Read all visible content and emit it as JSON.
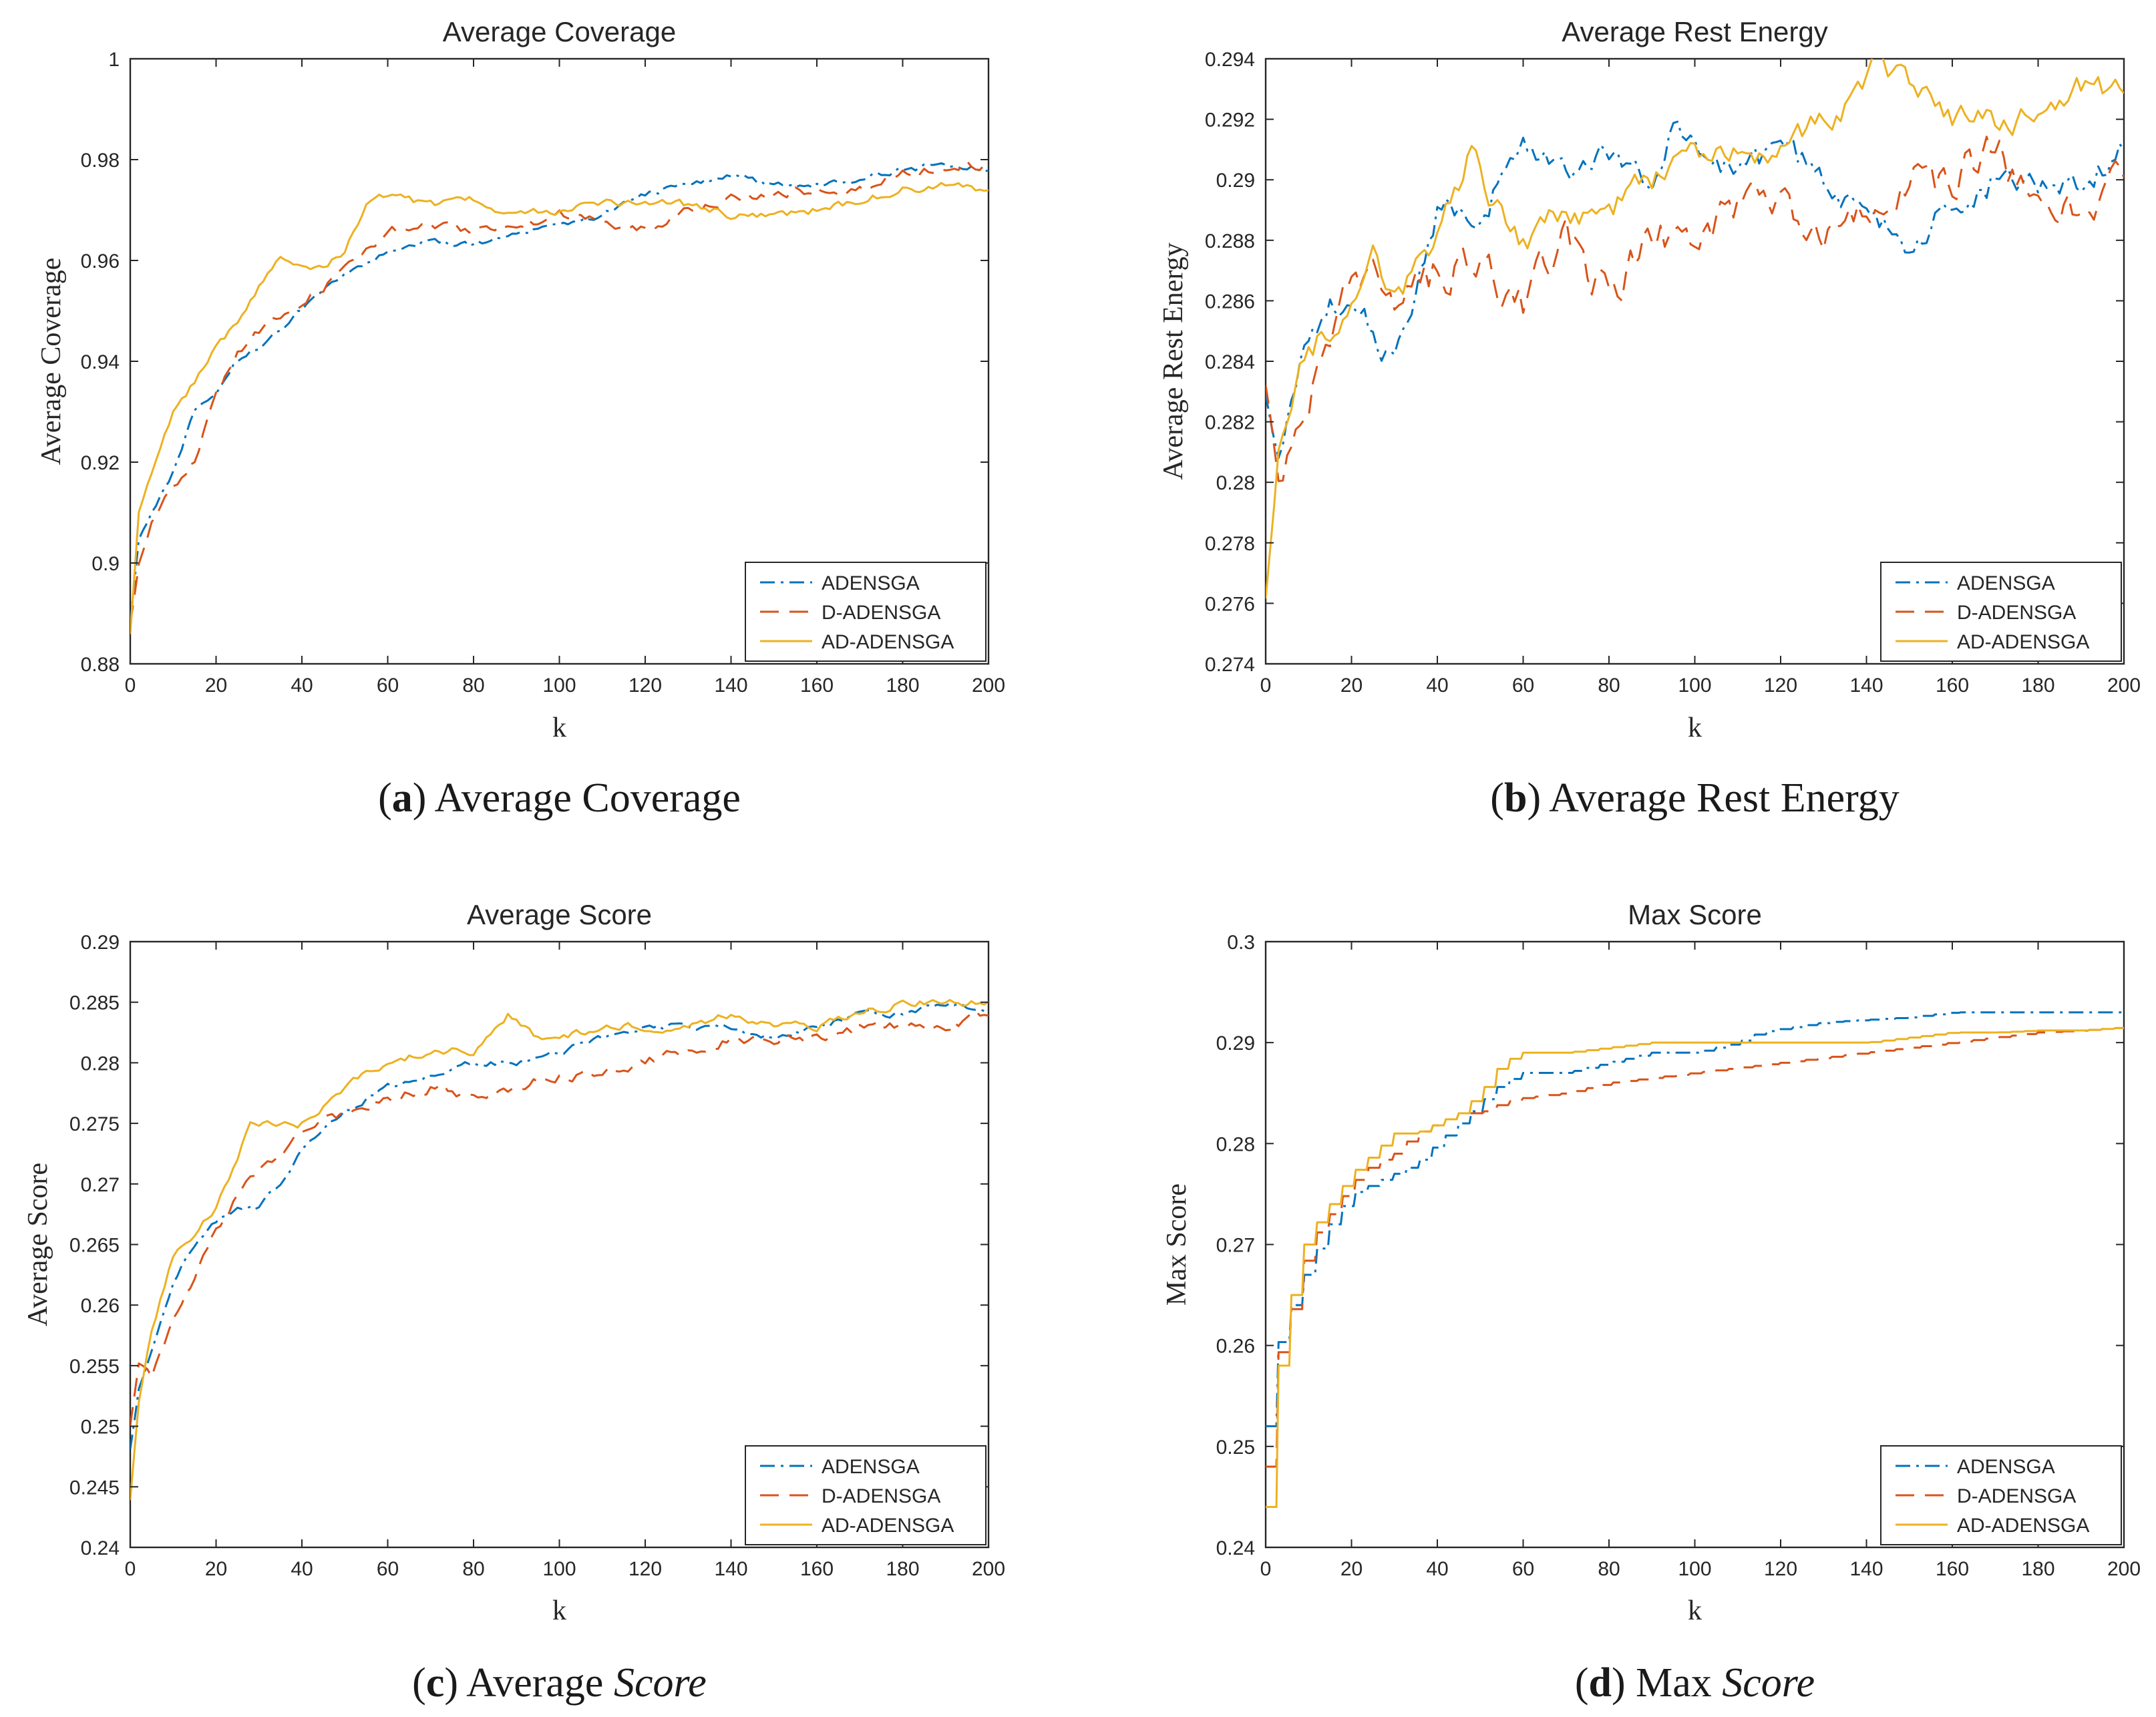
{
  "figure": {
    "series_colors": {
      "ADENSGA": "#0072BD",
      "D-ADENSGA": "#D95319",
      "AD-ADENSGA": "#EDB120"
    },
    "series_styles": {
      "ADENSGA": "dash-dot",
      "D-ADENSGA": "dashed",
      "AD-ADENSGA": "solid"
    }
  },
  "chart_data": [
    {
      "id": "a",
      "type": "line",
      "title": "Average Coverage",
      "xlabel": "k",
      "ylabel": "Average Coverage",
      "caption_label": "(a)",
      "caption_letter": "a",
      "caption_plain": "Average Coverage",
      "caption_italic": "",
      "xlim": [
        0,
        200
      ],
      "ylim": [
        0.88,
        1
      ],
      "xticks": [
        0,
        20,
        40,
        60,
        80,
        100,
        120,
        140,
        160,
        180,
        200
      ],
      "yticks": [
        0.88,
        0.9,
        0.92,
        0.94,
        0.96,
        0.98,
        1
      ],
      "ytick_labels": [
        "0.88",
        "0.9",
        "0.92",
        "0.94",
        "0.96",
        "0.98",
        "1"
      ],
      "grid": false,
      "legend": {
        "position": "bottom-right",
        "entries": [
          "ADENSGA",
          "D-ADENSGA",
          "AD-ADENSGA"
        ]
      },
      "noise": [
        0.0012,
        0.0018,
        0.0015
      ],
      "series": [
        {
          "name": "ADENSGA",
          "x": [
            0,
            2,
            5,
            10,
            15,
            20,
            25,
            30,
            40,
            50,
            60,
            70,
            80,
            90,
            100,
            110,
            120,
            130,
            140,
            150,
            160,
            170,
            180,
            190,
            200
          ],
          "values": [
            0.888,
            0.905,
            0.91,
            0.918,
            0.93,
            0.933,
            0.94,
            0.943,
            0.95,
            0.957,
            0.962,
            0.964,
            0.963,
            0.965,
            0.967,
            0.969,
            0.973,
            0.975,
            0.977,
            0.975,
            0.975,
            0.976,
            0.978,
            0.979,
            0.978
          ]
        },
        {
          "name": "D-ADENSGA",
          "x": [
            0,
            2,
            5,
            10,
            15,
            20,
            25,
            30,
            40,
            50,
            60,
            70,
            80,
            90,
            100,
            110,
            120,
            130,
            140,
            150,
            160,
            170,
            180,
            190,
            200
          ],
          "values": [
            0.888,
            0.9,
            0.908,
            0.915,
            0.92,
            0.933,
            0.942,
            0.946,
            0.952,
            0.958,
            0.966,
            0.967,
            0.966,
            0.967,
            0.969,
            0.968,
            0.966,
            0.97,
            0.972,
            0.973,
            0.974,
            0.974,
            0.977,
            0.979,
            0.979
          ]
        },
        {
          "name": "AD-ADENSGA",
          "x": [
            0,
            2,
            5,
            10,
            15,
            20,
            25,
            30,
            35,
            40,
            45,
            50,
            55,
            60,
            70,
            80,
            90,
            100,
            110,
            120,
            130,
            140,
            150,
            160,
            170,
            180,
            190,
            200
          ],
          "values": [
            0.886,
            0.91,
            0.918,
            0.93,
            0.936,
            0.943,
            0.948,
            0.955,
            0.96,
            0.958,
            0.958,
            0.962,
            0.971,
            0.973,
            0.971,
            0.972,
            0.969,
            0.97,
            0.971,
            0.972,
            0.971,
            0.969,
            0.969,
            0.97,
            0.972,
            0.974,
            0.975,
            0.974
          ]
        }
      ]
    },
    {
      "id": "b",
      "type": "line",
      "title": "Average Rest Energy",
      "xlabel": "k",
      "ylabel": "Average Rest Energy",
      "caption_label": "(b)",
      "caption_letter": "b",
      "caption_plain": "Average Rest Energy",
      "caption_italic": "",
      "xlim": [
        0,
        200
      ],
      "ylim": [
        0.274,
        0.294
      ],
      "xticks": [
        0,
        20,
        40,
        60,
        80,
        100,
        120,
        140,
        160,
        180,
        200
      ],
      "yticks": [
        0.274,
        0.276,
        0.278,
        0.28,
        0.282,
        0.284,
        0.286,
        0.288,
        0.29,
        0.292,
        0.294
      ],
      "ytick_labels": [
        "0.274",
        "0.276",
        "0.278",
        "0.28",
        "0.282",
        "0.284",
        "0.286",
        "0.288",
        "0.29",
        "0.292",
        "0.294"
      ],
      "grid": false,
      "legend": {
        "position": "bottom-right",
        "entries": [
          "ADENSGA",
          "D-ADENSGA",
          "AD-ADENSGA"
        ]
      },
      "noise": [
        0.0009,
        0.0013,
        0.0009
      ],
      "series": [
        {
          "name": "ADENSGA",
          "x": [
            0,
            3,
            8,
            15,
            20,
            25,
            30,
            35,
            40,
            50,
            60,
            70,
            80,
            90,
            95,
            100,
            110,
            120,
            130,
            140,
            150,
            160,
            170,
            180,
            190,
            200
          ],
          "values": [
            0.283,
            0.281,
            0.284,
            0.286,
            0.286,
            0.285,
            0.284,
            0.286,
            0.289,
            0.289,
            0.291,
            0.29,
            0.291,
            0.29,
            0.292,
            0.291,
            0.29,
            0.291,
            0.29,
            0.289,
            0.288,
            0.289,
            0.29,
            0.29,
            0.29,
            0.291
          ]
        },
        {
          "name": "D-ADENSGA",
          "x": [
            0,
            3,
            8,
            15,
            20,
            30,
            40,
            50,
            60,
            70,
            80,
            90,
            100,
            110,
            120,
            130,
            140,
            150,
            160,
            170,
            180,
            190,
            200
          ],
          "values": [
            0.283,
            0.28,
            0.282,
            0.285,
            0.287,
            0.286,
            0.287,
            0.287,
            0.286,
            0.288,
            0.286,
            0.288,
            0.288,
            0.289,
            0.289,
            0.288,
            0.289,
            0.29,
            0.29,
            0.291,
            0.289,
            0.289,
            0.29
          ]
        },
        {
          "name": "AD-ADENSGA",
          "x": [
            0,
            3,
            8,
            15,
            20,
            25,
            30,
            40,
            48,
            50,
            60,
            70,
            80,
            90,
            100,
            110,
            120,
            130,
            140,
            143,
            150,
            160,
            170,
            180,
            190,
            195,
            200
          ],
          "values": [
            0.276,
            0.281,
            0.284,
            0.285,
            0.286,
            0.288,
            0.286,
            0.288,
            0.291,
            0.29,
            0.288,
            0.289,
            0.289,
            0.29,
            0.291,
            0.291,
            0.291,
            0.292,
            0.293,
            0.294,
            0.293,
            0.292,
            0.292,
            0.292,
            0.293,
            0.293,
            0.293
          ]
        }
      ]
    },
    {
      "id": "c",
      "type": "line",
      "title": "Average Score",
      "xlabel": "k",
      "ylabel": "Average Score",
      "caption_label": "(c)",
      "caption_letter": "c",
      "caption_plain": "Average",
      "caption_italic": "Score",
      "xlim": [
        0,
        200
      ],
      "ylim": [
        0.24,
        0.29
      ],
      "xticks": [
        0,
        20,
        40,
        60,
        80,
        100,
        120,
        140,
        160,
        180,
        200
      ],
      "yticks": [
        0.24,
        0.245,
        0.25,
        0.255,
        0.26,
        0.265,
        0.27,
        0.275,
        0.28,
        0.285,
        0.29
      ],
      "ytick_labels": [
        "0.24",
        "0.245",
        "0.25",
        "0.255",
        "0.26",
        "0.265",
        "0.27",
        "0.275",
        "0.28",
        "0.285",
        "0.29"
      ],
      "grid": false,
      "legend": {
        "position": "bottom-right",
        "entries": [
          "ADENSGA",
          "D-ADENSGA",
          "AD-ADENSGA"
        ]
      },
      "noise": [
        0.0005,
        0.0008,
        0.0006
      ],
      "series": [
        {
          "name": "ADENSGA",
          "x": [
            0,
            2,
            5,
            10,
            15,
            20,
            25,
            30,
            35,
            40,
            50,
            60,
            70,
            80,
            90,
            100,
            110,
            120,
            130,
            140,
            150,
            160,
            170,
            180,
            190,
            200
          ],
          "values": [
            0.248,
            0.253,
            0.256,
            0.262,
            0.265,
            0.267,
            0.268,
            0.268,
            0.27,
            0.273,
            0.276,
            0.278,
            0.279,
            0.28,
            0.28,
            0.281,
            0.282,
            0.283,
            0.283,
            0.283,
            0.282,
            0.283,
            0.284,
            0.284,
            0.285,
            0.284
          ]
        },
        {
          "name": "D-ADENSGA",
          "x": [
            0,
            2,
            5,
            10,
            15,
            20,
            25,
            30,
            40,
            50,
            60,
            70,
            80,
            90,
            100,
            110,
            120,
            130,
            140,
            150,
            160,
            170,
            180,
            190,
            200
          ],
          "values": [
            0.25,
            0.255,
            0.254,
            0.259,
            0.262,
            0.266,
            0.269,
            0.271,
            0.274,
            0.276,
            0.277,
            0.278,
            0.277,
            0.278,
            0.279,
            0.279,
            0.28,
            0.281,
            0.282,
            0.282,
            0.282,
            0.283,
            0.283,
            0.283,
            0.284
          ]
        },
        {
          "name": "AD-ADENSGA",
          "x": [
            0,
            2,
            5,
            10,
            15,
            20,
            25,
            28,
            35,
            40,
            50,
            60,
            70,
            80,
            88,
            95,
            100,
            110,
            120,
            130,
            140,
            150,
            160,
            170,
            180,
            190,
            200
          ],
          "values": [
            0.244,
            0.252,
            0.258,
            0.264,
            0.266,
            0.268,
            0.272,
            0.275,
            0.275,
            0.275,
            0.278,
            0.28,
            0.281,
            0.281,
            0.284,
            0.282,
            0.282,
            0.283,
            0.283,
            0.283,
            0.284,
            0.283,
            0.283,
            0.284,
            0.285,
            0.285,
            0.285
          ]
        }
      ]
    },
    {
      "id": "d",
      "type": "line",
      "title": "Max Score",
      "xlabel": "k",
      "ylabel": "Max Score",
      "caption_label": "(d)",
      "caption_letter": "d",
      "caption_plain": "Max",
      "caption_italic": "Score",
      "xlim": [
        0,
        200
      ],
      "ylim": [
        0.24,
        0.3
      ],
      "xticks": [
        0,
        20,
        40,
        60,
        80,
        100,
        120,
        140,
        160,
        180,
        200
      ],
      "yticks": [
        0.24,
        0.25,
        0.26,
        0.27,
        0.28,
        0.29,
        0.3
      ],
      "ytick_labels": [
        "0.24",
        "0.25",
        "0.26",
        "0.27",
        "0.28",
        "0.29",
        "0.3"
      ],
      "grid": false,
      "legend": {
        "position": "bottom-right",
        "entries": [
          "ADENSGA",
          "D-ADENSGA",
          "AD-ADENSGA"
        ]
      },
      "noise": [
        0,
        0,
        0
      ],
      "series": [
        {
          "name": "ADENSGA",
          "x": [
            0,
            2,
            5,
            10,
            15,
            20,
            25,
            30,
            35,
            40,
            45,
            50,
            55,
            60,
            70,
            80,
            90,
            100,
            110,
            115,
            130,
            150,
            160,
            180,
            200
          ],
          "values": [
            0.252,
            0.259,
            0.263,
            0.268,
            0.272,
            0.275,
            0.276,
            0.277,
            0.278,
            0.28,
            0.282,
            0.284,
            0.286,
            0.287,
            0.287,
            0.288,
            0.289,
            0.289,
            0.29,
            0.291,
            0.292,
            0.2925,
            0.293,
            0.293,
            0.293
          ]
        },
        {
          "name": "D-ADENSGA",
          "x": [
            0,
            2,
            5,
            10,
            15,
            20,
            25,
            30,
            35,
            40,
            45,
            50,
            55,
            60,
            70,
            80,
            90,
            100,
            110,
            120,
            130,
            140,
            150,
            160,
            170,
            180,
            190,
            200
          ],
          "values": [
            0.248,
            0.258,
            0.262,
            0.27,
            0.273,
            0.276,
            0.278,
            0.279,
            0.281,
            0.282,
            0.283,
            0.283,
            0.284,
            0.2845,
            0.285,
            0.286,
            0.2865,
            0.287,
            0.2875,
            0.288,
            0.2885,
            0.289,
            0.2895,
            0.29,
            0.2905,
            0.291,
            0.2912,
            0.2915
          ]
        },
        {
          "name": "AD-ADENSGA",
          "x": [
            0,
            2,
            5,
            7,
            10,
            15,
            20,
            25,
            30,
            35,
            40,
            45,
            50,
            55,
            60,
            70,
            80,
            90,
            100,
            110,
            120,
            130,
            140,
            150,
            160,
            170,
            180,
            190,
            200
          ],
          "values": [
            0.244,
            0.256,
            0.262,
            0.268,
            0.271,
            0.274,
            0.277,
            0.279,
            0.281,
            0.281,
            0.282,
            0.283,
            0.285,
            0.288,
            0.289,
            0.289,
            0.2895,
            0.29,
            0.29,
            0.29,
            0.29,
            0.29,
            0.29,
            0.2905,
            0.291,
            0.291,
            0.2912,
            0.2912,
            0.2915
          ]
        }
      ]
    }
  ]
}
